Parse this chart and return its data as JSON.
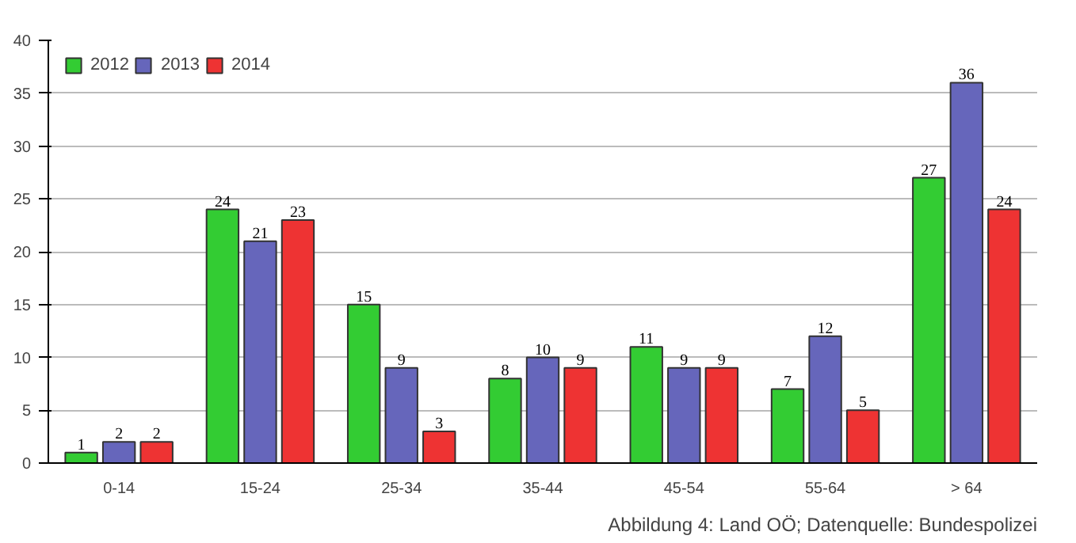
{
  "chart_data": {
    "type": "bar",
    "categories": [
      "0-14",
      "15-24",
      "25-34",
      "35-44",
      "45-54",
      "55-64",
      "> 64"
    ],
    "series": [
      {
        "name": "2012",
        "color": "#33cc33",
        "values": [
          1,
          24,
          15,
          8,
          11,
          7,
          27
        ]
      },
      {
        "name": "2013",
        "color": "#6666bb",
        "values": [
          2,
          21,
          9,
          10,
          9,
          12,
          36
        ]
      },
      {
        "name": "2014",
        "color": "#ee3333",
        "values": [
          2,
          23,
          3,
          9,
          9,
          5,
          24
        ]
      }
    ],
    "ylim": [
      0,
      40
    ],
    "yticks": [
      0,
      5,
      10,
      15,
      20,
      25,
      30,
      35,
      40
    ],
    "grid": "y",
    "legend": "top left",
    "data_labels": true,
    "annotations": [
      "Abbildung 4: Land OÖ; Datenquelle: Bundespolizei"
    ]
  }
}
